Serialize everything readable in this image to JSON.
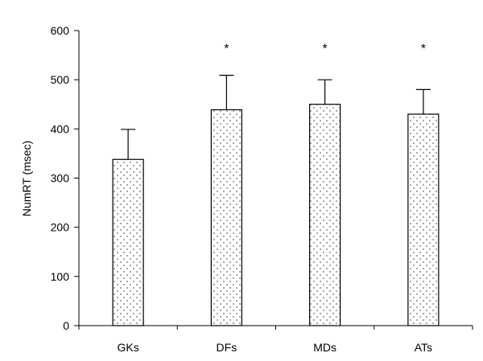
{
  "chart_data": {
    "type": "bar",
    "categories": [
      "GKs",
      "DFs",
      "MDs",
      "ATs"
    ],
    "values": [
      338,
      439,
      450,
      430
    ],
    "error_upper": [
      61,
      70,
      50,
      50
    ],
    "significance": [
      "",
      "*",
      "*",
      "*"
    ],
    "xlabel": "",
    "ylabel": "NumRT (msec)",
    "ylim": [
      0,
      600
    ],
    "yticks": [
      0,
      100,
      200,
      300,
      400,
      500,
      600
    ],
    "grid": false,
    "legend": "none",
    "bar_fill": "dotted",
    "colors": {
      "bar_dot": "#333333",
      "bar_bg": "#ffffff",
      "axis": "#000000"
    }
  }
}
